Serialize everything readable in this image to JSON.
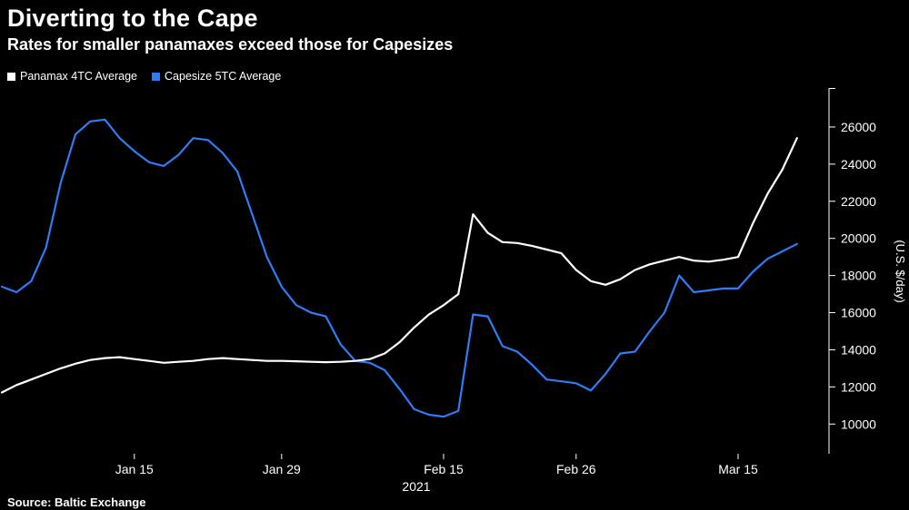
{
  "header": {
    "title": "Diverting to the Cape",
    "subtitle": "Rates for smaller panamaxes exceed those for Capesizes"
  },
  "footer": {
    "source": "Source: Baltic Exchange"
  },
  "colors": {
    "background": "#000000",
    "panamax_line": "#ffffff",
    "capesize_line": "#2e7cf6",
    "axis": "#ffffff"
  },
  "chart_data": {
    "type": "line",
    "title": "Diverting to the Cape",
    "subtitle": "Rates for smaller panamaxes exceed those for Capesizes",
    "ylabel": "(U.S. $/day)",
    "x_note": "2021",
    "ylim": [
      8400,
      28100
    ],
    "yticks": [
      10000,
      12000,
      14000,
      16000,
      18000,
      20000,
      22000,
      24000,
      26000
    ],
    "xticks": [
      {
        "label": "Jan 15",
        "index": 9
      },
      {
        "label": "Jan 29",
        "index": 19
      },
      {
        "label": "Feb 15",
        "index": 30
      },
      {
        "label": "Feb 26",
        "index": 39
      },
      {
        "label": "Mar 15",
        "index": 50
      }
    ],
    "legend_position": "top-left",
    "grid": false,
    "series": [
      {
        "name": "Panamax 4TC Average",
        "color": "#ffffff",
        "values": [
          11700,
          12100,
          12400,
          12700,
          13000,
          13250,
          13450,
          13550,
          13600,
          13500,
          13400,
          13300,
          13350,
          13400,
          13500,
          13550,
          13500,
          13450,
          13400,
          13400,
          13380,
          13350,
          13330,
          13350,
          13400,
          13500,
          13800,
          14400,
          15200,
          15900,
          16400,
          17000,
          21300,
          20300,
          19800,
          19750,
          19600,
          19400,
          19200,
          18300,
          17700,
          17500,
          17800,
          18300,
          18600,
          18800,
          19000,
          18800,
          18750,
          18850,
          19000,
          20800,
          22400,
          23700,
          25400
        ]
      },
      {
        "name": "Capesize 5TC Average",
        "color": "#2e7cf6",
        "values": [
          17400,
          17100,
          17700,
          19500,
          23000,
          25600,
          26300,
          26400,
          25400,
          24700,
          24100,
          23900,
          24500,
          25400,
          25300,
          24600,
          23600,
          21300,
          19000,
          17400,
          16400,
          16000,
          15800,
          14300,
          13400,
          13300,
          12900,
          11900,
          10800,
          10500,
          10400,
          10700,
          15900,
          15800,
          14200,
          13900,
          13200,
          12400,
          12300,
          12200,
          11800,
          12700,
          13800,
          13900,
          15000,
          16000,
          18000,
          17100,
          17200,
          17300,
          17300,
          18200,
          18900,
          19300,
          19700
        ]
      }
    ]
  }
}
